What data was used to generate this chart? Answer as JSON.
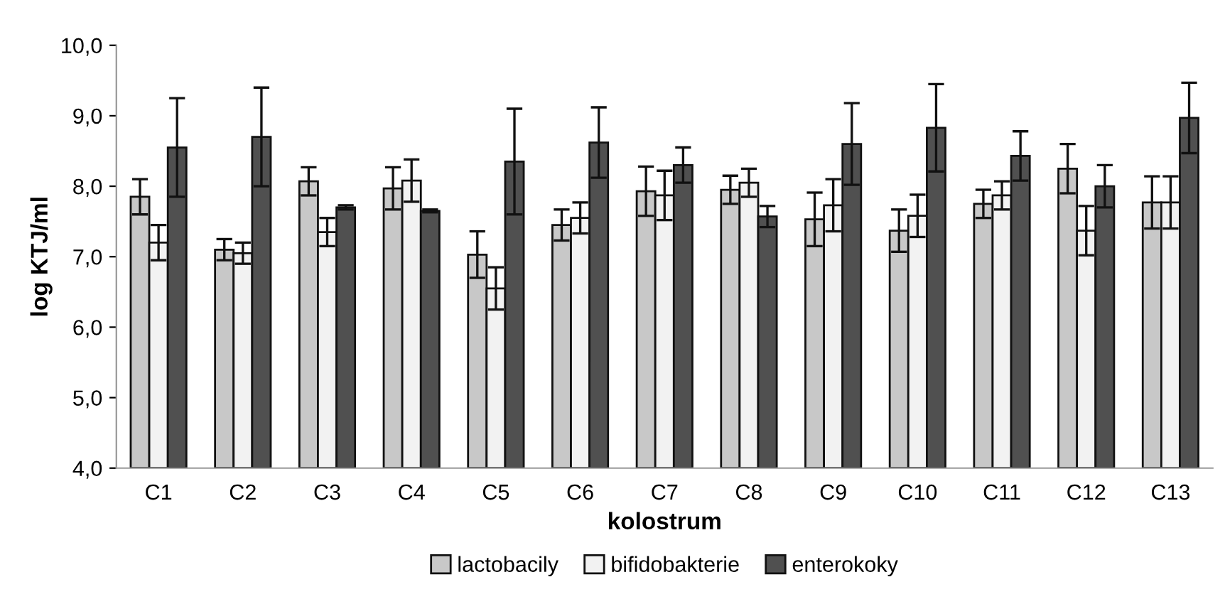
{
  "chart_data": {
    "type": "bar",
    "xlabel": "kolostrum",
    "ylabel": "log KTJ/ml",
    "categories": [
      "C1",
      "C2",
      "C3",
      "C4",
      "C5",
      "C6",
      "C7",
      "C8",
      "C9",
      "C10",
      "C11",
      "C12",
      "C13"
    ],
    "series": [
      {
        "name": "lactobacily",
        "color": "#c8c8c8",
        "values": [
          7.85,
          7.1,
          8.07,
          7.97,
          7.03,
          7.45,
          7.93,
          7.95,
          7.53,
          7.37,
          7.75,
          8.25,
          7.77
        ],
        "errors": [
          0.25,
          0.15,
          0.2,
          0.3,
          0.33,
          0.22,
          0.35,
          0.2,
          0.38,
          0.3,
          0.2,
          0.35,
          0.37
        ]
      },
      {
        "name": "bifidobakterie",
        "color": "#f2f2f2",
        "values": [
          7.2,
          7.05,
          7.35,
          8.08,
          6.55,
          7.55,
          7.87,
          8.05,
          7.73,
          7.58,
          7.87,
          7.37,
          7.77
        ],
        "errors": [
          0.25,
          0.15,
          0.2,
          0.3,
          0.3,
          0.22,
          0.35,
          0.2,
          0.37,
          0.3,
          0.2,
          0.35,
          0.37
        ]
      },
      {
        "name": "enterokoky",
        "color": "#505050",
        "values": [
          8.55,
          8.7,
          7.7,
          7.65,
          8.35,
          8.62,
          8.3,
          7.57,
          8.6,
          8.83,
          8.43,
          8.0,
          8.97
        ],
        "errors": [
          0.7,
          0.7,
          0.03,
          0.02,
          0.75,
          0.5,
          0.25,
          0.15,
          0.58,
          0.62,
          0.35,
          0.3,
          0.5
        ]
      }
    ],
    "ylim": [
      4,
      10
    ],
    "yticks": [
      {
        "value": 4,
        "label": "4,0"
      },
      {
        "value": 5,
        "label": "5,0"
      },
      {
        "value": 6,
        "label": "6,0"
      },
      {
        "value": 7,
        "label": "7,0"
      },
      {
        "value": 8,
        "label": "8,0"
      },
      {
        "value": 9,
        "label": "9,0"
      },
      {
        "value": 10,
        "label": "10,0"
      }
    ],
    "grid": false,
    "legend": "bottom"
  }
}
